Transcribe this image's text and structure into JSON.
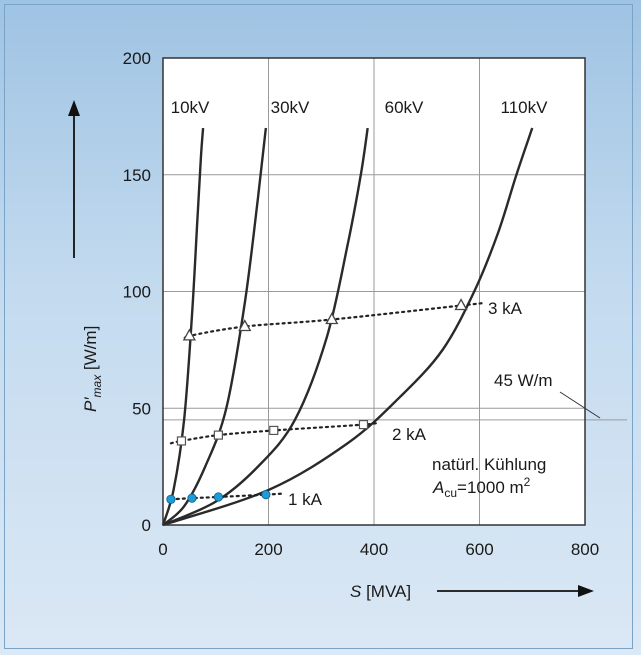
{
  "chart_data": {
    "type": "line",
    "xlabel": "S [MVA]",
    "ylabel_main": "P′",
    "ylabel_sub": "max",
    "ylabel_unit": "[W/m]",
    "xlim": [
      0,
      800
    ],
    "ylim": [
      0,
      200
    ],
    "xticks": [
      0,
      200,
      400,
      600,
      800
    ],
    "yticks": [
      0,
      50,
      100,
      150,
      200
    ],
    "grid": true,
    "series": [
      {
        "name": "10kV",
        "x": [
          0,
          20,
          40,
          55,
          65,
          72,
          76
        ],
        "y": [
          0,
          15,
          45,
          90,
          130,
          158,
          170
        ]
      },
      {
        "name": "30kV",
        "x": [
          0,
          40,
          80,
          120,
          155,
          180,
          195
        ],
        "y": [
          0,
          8,
          25,
          50,
          95,
          140,
          170
        ]
      },
      {
        "name": "60kV",
        "x": [
          0,
          100,
          180,
          250,
          310,
          350,
          375,
          388
        ],
        "y": [
          0,
          10,
          25,
          45,
          80,
          120,
          150,
          170
        ]
      },
      {
        "name": "110kV",
        "x": [
          0,
          200,
          350,
          450,
          530,
          590,
          635,
          670,
          700
        ],
        "y": [
          0,
          15,
          35,
          55,
          75,
          100,
          125,
          150,
          170
        ]
      }
    ],
    "current_lines": [
      {
        "name": "1 kA",
        "points": [
          [
            15,
            11
          ],
          [
            55,
            11.5
          ],
          [
            105,
            12
          ],
          [
            195,
            13
          ],
          [
            230,
            13.5
          ]
        ],
        "marker": "circle"
      },
      {
        "name": "2 kA",
        "points": [
          [
            15,
            35
          ],
          [
            35,
            36
          ],
          [
            105,
            38.5
          ],
          [
            210,
            40.5
          ],
          [
            380,
            43
          ],
          [
            410,
            44
          ]
        ],
        "marker": "square"
      },
      {
        "name": "3 kA",
        "points": [
          [
            45,
            80
          ],
          [
            50,
            81
          ],
          [
            155,
            85
          ],
          [
            320,
            88
          ],
          [
            565,
            94
          ],
          [
            605,
            95
          ]
        ],
        "marker": "triangle"
      }
    ],
    "annotations": {
      "reference_value": 45,
      "reference_label": "45 W/m",
      "cooling_text_1": "natürl. Kühlung",
      "cooling_text_2_base": "A",
      "cooling_text_2_sub": "cu",
      "cooling_text_2_rest": "=1000 m",
      "cooling_text_2_sup": "2"
    },
    "colors": {
      "curve": "#2a2a2a",
      "marker_1kA": "#1f9bd6",
      "plot_bg": "#ffffff",
      "frame_bg": "#b9d4ec"
    }
  }
}
